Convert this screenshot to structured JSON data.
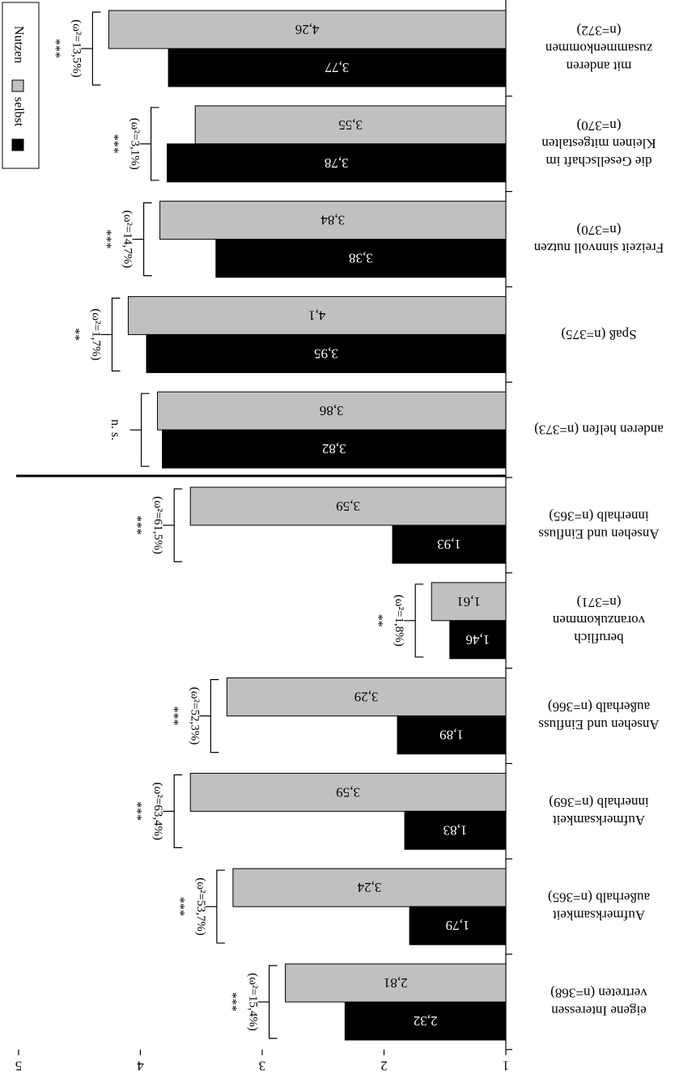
{
  "chart_data": {
    "type": "bar",
    "orientation": "horizontal",
    "rotated_180": true,
    "xlim": [
      1,
      5
    ],
    "ticks": [
      "1",
      "2",
      "3",
      "4",
      "5"
    ],
    "series": [
      {
        "name": "selbst",
        "color": "#000000",
        "values": [
          3.77,
          3.78,
          3.38,
          3.95,
          3.82,
          1.93,
          1.46,
          1.89,
          1.83,
          1.79,
          2.32
        ]
      },
      {
        "name": "Nutzen",
        "color": "#c0c0c0",
        "values": [
          4.26,
          3.55,
          3.84,
          4.1,
          3.86,
          3.59,
          1.61,
          3.29,
          3.59,
          3.24,
          2.81
        ]
      }
    ],
    "value_labels": {
      "selbst": [
        "3,77",
        "3,78",
        "3,38",
        "3,95",
        "3,82",
        "1,93",
        "1,46",
        "1,89",
        "1,83",
        "1,79",
        "2,32"
      ],
      "Nutzen": [
        "4,26",
        "3,55",
        "3,84",
        "4,1",
        "3,86",
        "3,59",
        "1,61",
        "3,29",
        "3,59",
        "3,24",
        "2,81"
      ]
    },
    "categories": [
      {
        "lines": [
          "mit anderen",
          "zusammenkommen",
          "(n=372)"
        ],
        "sig": "***",
        "omega": "(ω²=13,5%)"
      },
      {
        "lines": [
          "die Gesellschaft im",
          "Kleinen mitgestalten",
          "(n=370)"
        ],
        "sig": "***",
        "omega": "(ω²=3,1%)"
      },
      {
        "lines": [
          "Freizeit sinnvoll nutzen",
          "(n=370)"
        ],
        "sig": "***",
        "omega": "(ω²=14,7%)"
      },
      {
        "lines": [
          "Spaß (n=375)"
        ],
        "sig": "**",
        "omega": "(ω²=1,7%)"
      },
      {
        "lines": [
          "anderen helfen (n=373)"
        ],
        "sig": "n. s.",
        "omega": ""
      },
      {
        "lines": [
          "Ansehen und Einfluss",
          "innerhalb (n=365)"
        ],
        "sig": "***",
        "omega": "(ω²=61,5%)"
      },
      {
        "lines": [
          "beruflich",
          "voranzukommen",
          "(n=371)"
        ],
        "sig": "**",
        "omega": "(ω²=1,8%)"
      },
      {
        "lines": [
          "Ansehen und Einfluss",
          "außerhalb (n=366)"
        ],
        "sig": "***",
        "omega": "(ω²=52,3%)"
      },
      {
        "lines": [
          "Aufmerksamkeit",
          "innerhalb (n=369)"
        ],
        "sig": "***",
        "omega": "(ω²=63,4%)"
      },
      {
        "lines": [
          "Aufmerksamkeit",
          "außerhalb (n=365)"
        ],
        "sig": "***",
        "omega": "(ω²=53,7%)"
      },
      {
        "lines": [
          "eigene Interessen",
          "vertreten (n=368)"
        ],
        "sig": "***",
        "omega": "(ω²=15,4%)"
      }
    ],
    "legend": {
      "position": "top-left",
      "entries": [
        "selbst",
        "Nutzen"
      ]
    },
    "separator_after_index": 4,
    "grid": false
  }
}
